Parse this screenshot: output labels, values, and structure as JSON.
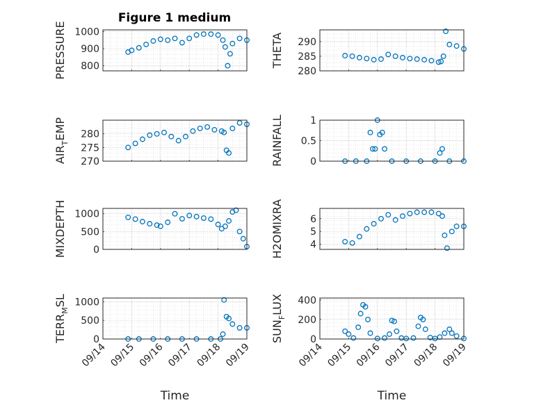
{
  "figure_title": "Figure 1 medium",
  "marker_color": "#0072BD",
  "chart_data": [
    {
      "type": "scatter",
      "ylabel": "PRESSURE",
      "ylim": [
        770,
        1010
      ],
      "yticks": [
        "800",
        "900",
        "1000"
      ],
      "ytick_values": [
        800,
        900,
        1000
      ],
      "x_range": [
        "09/14",
        "09/19"
      ],
      "grid": "on (major + minor)",
      "x": [
        "09/14 21:00",
        "09/15 00:00",
        "09/15 06:00",
        "09/15 12:00",
        "09/15 18:00",
        "09/16 00:00",
        "09/16 06:00",
        "09/16 12:00",
        "09/16 18:00",
        "09/17 00:00",
        "09/17 06:00",
        "09/17 12:00",
        "09/17 18:00",
        "09/18 00:00",
        "09/18 04:00",
        "09/18 06:00",
        "09/18 08:00",
        "09/18 10:00",
        "09/18 12:00",
        "09/18 18:00",
        "09/19 00:00"
      ],
      "y": [
        880,
        890,
        905,
        925,
        945,
        955,
        950,
        960,
        935,
        960,
        980,
        985,
        985,
        980,
        950,
        910,
        800,
        870,
        930,
        960,
        950
      ]
    },
    {
      "type": "scatter",
      "ylabel": "THETA",
      "ylim": [
        280,
        294
      ],
      "yticks": [
        "280",
        "285",
        "290"
      ],
      "ytick_values": [
        280,
        285,
        290
      ],
      "x_range": [
        "09/14",
        "09/19"
      ],
      "grid": "on (major + minor)",
      "x": [
        "09/14 21:00",
        "09/15 03:00",
        "09/15 09:00",
        "09/15 15:00",
        "09/15 21:00",
        "09/16 03:00",
        "09/16 09:00",
        "09/16 15:00",
        "09/16 21:00",
        "09/17 03:00",
        "09/17 09:00",
        "09/17 15:00",
        "09/17 21:00",
        "09/18 03:00",
        "09/18 05:00",
        "09/18 07:00",
        "09/18 09:00",
        "09/18 12:00",
        "09/18 18:00",
        "09/19 00:00"
      ],
      "y": [
        285.2,
        285,
        284.5,
        284.2,
        283.8,
        284,
        285.6,
        285,
        284.5,
        284.2,
        284,
        283.8,
        283.5,
        283,
        283.2,
        285,
        293.5,
        289,
        288.5,
        287.5
      ]
    },
    {
      "type": "scatter",
      "ylabel_main": "AIR",
      "ylabel_sub": "T",
      "ylabel_rest": "EMP",
      "ylim": [
        270,
        285
      ],
      "yticks": [
        "270",
        "275",
        "280"
      ],
      "ytick_values": [
        270,
        275,
        280
      ],
      "x_range": [
        "09/14",
        "09/19"
      ],
      "grid": "on (major + minor)",
      "x": [
        "09/14 21:00",
        "09/15 03:00",
        "09/15 09:00",
        "09/15 15:00",
        "09/15 21:00",
        "09/16 03:00",
        "09/16 09:00",
        "09/16 15:00",
        "09/16 21:00",
        "09/17 03:00",
        "09/17 09:00",
        "09/17 15:00",
        "09/17 21:00",
        "09/18 03:00",
        "09/18 05:00",
        "09/18 07:00",
        "09/18 09:00",
        "09/18 12:00",
        "09/18 18:00",
        "09/19 00:00"
      ],
      "y": [
        275,
        276.5,
        278,
        279.5,
        280,
        280.5,
        279,
        277.5,
        279,
        281,
        282,
        282.5,
        281.5,
        281,
        280.5,
        274,
        273,
        282,
        284,
        283.5
      ]
    },
    {
      "type": "scatter",
      "ylabel": "RAINFALL",
      "ylim": [
        0,
        1
      ],
      "yticks": [
        "0",
        "0.5",
        "1"
      ],
      "ytick_values": [
        0,
        0.5,
        1
      ],
      "x_range": [
        "09/14",
        "09/19"
      ],
      "grid": "on (major + minor)",
      "x": [
        "09/14 21:00",
        "09/15 06:00",
        "09/15 15:00",
        "09/15 18:00",
        "09/15 20:00",
        "09/15 22:00",
        "09/16 00:00",
        "09/16 02:00",
        "09/16 04:00",
        "09/16 06:00",
        "09/16 12:00",
        "09/17 00:00",
        "09/17 12:00",
        "09/18 00:00",
        "09/18 04:00",
        "09/18 06:00",
        "09/18 12:00",
        "09/19 00:00"
      ],
      "y": [
        0,
        0,
        0,
        0.7,
        0.3,
        0.3,
        1,
        0.65,
        0.7,
        0.3,
        0,
        0,
        0,
        0,
        0.2,
        0.3,
        0,
        0
      ]
    },
    {
      "type": "scatter",
      "ylabel": "MIXDEPTH",
      "ylim": [
        0,
        1150
      ],
      "yticks": [
        "0",
        "500",
        "1000"
      ],
      "ytick_values": [
        0,
        500,
        1000
      ],
      "x_range": [
        "09/14",
        "09/19"
      ],
      "grid": "on (major + minor)",
      "x": [
        "09/14 21:00",
        "09/15 03:00",
        "09/15 09:00",
        "09/15 15:00",
        "09/15 21:00",
        "09/16 00:00",
        "09/16 06:00",
        "09/16 12:00",
        "09/16 18:00",
        "09/17 00:00",
        "09/17 06:00",
        "09/17 12:00",
        "09/17 18:00",
        "09/18 00:00",
        "09/18 03:00",
        "09/18 06:00",
        "09/18 09:00",
        "09/18 12:00",
        "09/18 15:00",
        "09/18 18:00",
        "09/18 21:00",
        "09/19 00:00"
      ],
      "y": [
        900,
        850,
        780,
        720,
        680,
        650,
        760,
        1000,
        860,
        950,
        920,
        880,
        850,
        700,
        580,
        650,
        800,
        1050,
        1100,
        500,
        300,
        80
      ]
    },
    {
      "type": "scatter",
      "ylabel": "H2OMIXRA",
      "ylim": [
        3.6,
        6.8
      ],
      "yticks": [
        "4",
        "5",
        "6"
      ],
      "ytick_values": [
        4,
        5,
        6
      ],
      "x_range": [
        "09/14",
        "09/19"
      ],
      "grid": "on (major + minor)",
      "x": [
        "09/14 21:00",
        "09/15 03:00",
        "09/15 09:00",
        "09/15 15:00",
        "09/15 21:00",
        "09/16 03:00",
        "09/16 09:00",
        "09/16 15:00",
        "09/16 21:00",
        "09/17 03:00",
        "09/17 09:00",
        "09/17 15:00",
        "09/17 21:00",
        "09/18 03:00",
        "09/18 06:00",
        "09/18 08:00",
        "09/18 10:00",
        "09/18 14:00",
        "09/18 18:00",
        "09/19 00:00"
      ],
      "y": [
        4.2,
        4.1,
        4.6,
        5.2,
        5.6,
        6,
        6.3,
        5.9,
        6.2,
        6.4,
        6.5,
        6.5,
        6.5,
        6.4,
        6.2,
        4.7,
        3.7,
        5,
        5.4,
        5.4
      ]
    },
    {
      "type": "scatter",
      "ylabel_main": "TERR",
      "ylabel_sub": "M",
      "ylabel_rest": "SL",
      "ylim": [
        0,
        1100
      ],
      "yticks": [
        "0",
        "500",
        "1000"
      ],
      "ytick_values": [
        0,
        500,
        1000
      ],
      "x_range": [
        "09/14",
        "09/19"
      ],
      "grid": "on (major + minor)",
      "x": [
        "09/14 21:00",
        "09/15 06:00",
        "09/15 18:00",
        "09/16 06:00",
        "09/16 18:00",
        "09/17 06:00",
        "09/17 18:00",
        "09/18 02:00",
        "09/18 04:00",
        "09/18 05:00",
        "09/18 07:00",
        "09/18 09:00",
        "09/18 12:00",
        "09/18 18:00",
        "09/19 00:00"
      ],
      "y": [
        0,
        0,
        0,
        0,
        0,
        0,
        0,
        0,
        130,
        1050,
        600,
        550,
        400,
        300,
        300
      ]
    },
    {
      "type": "scatter",
      "ylabel_main": "SUN",
      "ylabel_sub": "F",
      "ylabel_rest": "LUX",
      "ylim": [
        0,
        420
      ],
      "yticks": [
        "0",
        "200",
        "400"
      ],
      "ytick_values": [
        0,
        200,
        400
      ],
      "xticks": [
        "09/14",
        "09/15",
        "09/16",
        "09/17",
        "09/18",
        "09/19"
      ],
      "xlabel": "Time",
      "x_range": [
        "09/14",
        "09/19"
      ],
      "grid": "on (major + minor)",
      "x": [
        "09/14 21:00",
        "09/15 00:00",
        "09/15 04:00",
        "09/15 08:00",
        "09/15 10:00",
        "09/15 12:00",
        "09/15 14:00",
        "09/15 16:00",
        "09/15 18:00",
        "09/16 00:00",
        "09/16 06:00",
        "09/16 10:00",
        "09/16 12:00",
        "09/16 14:00",
        "09/16 16:00",
        "09/16 20:00",
        "09/17 00:00",
        "09/17 06:00",
        "09/17 10:00",
        "09/17 12:00",
        "09/17 14:00",
        "09/17 16:00",
        "09/17 20:00",
        "09/18 00:00",
        "09/18 04:00",
        "09/18 08:00",
        "09/18 12:00",
        "09/18 14:00",
        "09/18 18:00",
        "09/19 00:00"
      ],
      "y": [
        80,
        50,
        10,
        120,
        260,
        350,
        330,
        200,
        60,
        5,
        10,
        50,
        190,
        180,
        80,
        10,
        5,
        10,
        130,
        220,
        200,
        100,
        15,
        5,
        20,
        60,
        100,
        60,
        30,
        5
      ]
    }
  ]
}
